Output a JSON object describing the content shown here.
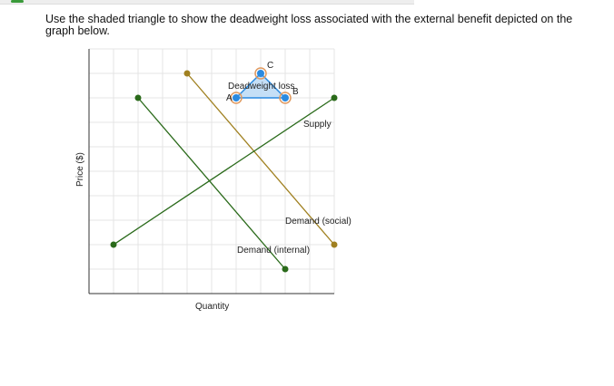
{
  "question": "Use the shaded triangle to show the deadweight loss associated with the external benefit depicted on the graph below.",
  "chart_data": {
    "type": "line",
    "xlabel": "Quantity",
    "ylabel": "Price ($)",
    "xlim": [
      0,
      10
    ],
    "ylim": [
      0,
      10
    ],
    "grid": true,
    "series": [
      {
        "name": "Demand (internal)",
        "color": "#2a6a1a",
        "points": [
          [
            2,
            8
          ],
          [
            8,
            1
          ]
        ]
      },
      {
        "name": "Demand (social)",
        "color": "#a08020",
        "points": [
          [
            4,
            9
          ],
          [
            10,
            2
          ]
        ]
      },
      {
        "name": "Supply",
        "color": "#2a6a1a",
        "points": [
          [
            1,
            2
          ],
          [
            10,
            8
          ]
        ]
      }
    ],
    "triangle": {
      "label": "Deadweight loss",
      "fill": "#bfdcf5",
      "stroke": "#2a8ae0",
      "points": [
        {
          "label": "A",
          "x": 6,
          "y": 8
        },
        {
          "label": "B",
          "x": 8,
          "y": 8
        },
        {
          "label": "C",
          "x": 7,
          "y": 9
        }
      ]
    }
  }
}
